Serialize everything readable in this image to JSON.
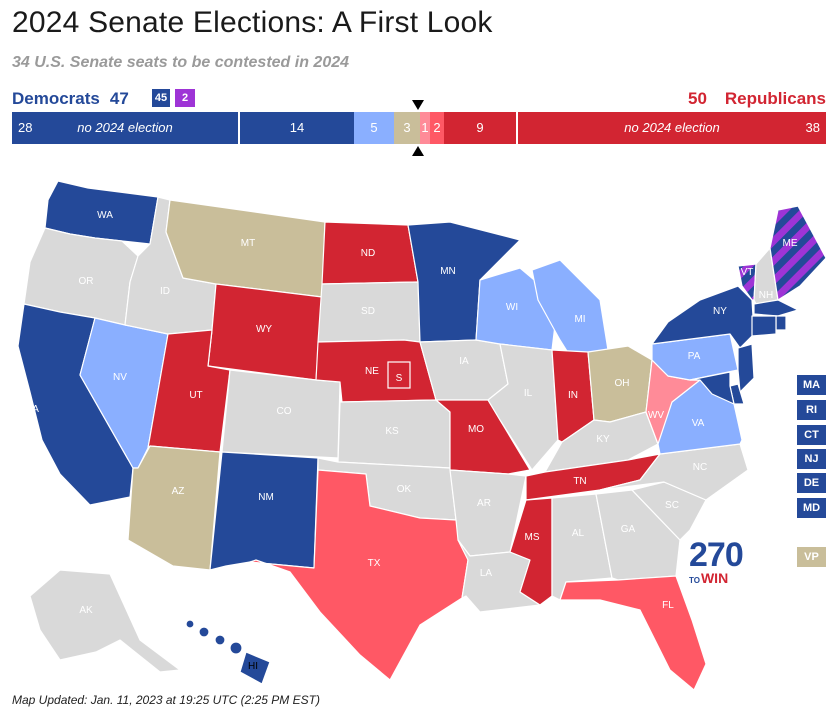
{
  "header": {
    "title": "2024 Senate Elections: A First Look",
    "subtitle": "34 U.S. Senate seats to be contested in 2024"
  },
  "totals": {
    "dem_label": "Democrats",
    "dem_count": "47",
    "dem_badge": "45",
    "ind_badge": "2",
    "rep_count": "50",
    "rep_label": "Republicans"
  },
  "seat_bar": {
    "segments": [
      {
        "label": "28",
        "text": "no 2024 election",
        "color": "#244999"
      },
      {
        "label": "14",
        "color": "#244999"
      },
      {
        "label": "5",
        "color": "#8aafff"
      },
      {
        "label": "3",
        "color": "#c9be9a"
      },
      {
        "label": "1",
        "color": "#ff8b98"
      },
      {
        "label": "2",
        "color": "#ff5865"
      },
      {
        "label": "9",
        "color": "#d22532"
      },
      {
        "label": "38",
        "text": "no 2024 election",
        "color": "#d22532"
      }
    ]
  },
  "colors": {
    "safe_dem": "#244999",
    "lean_dem": "#8aafff",
    "tossup": "#c9be9a",
    "tilt_rep": "#ff8b98",
    "likely_rep": "#ff5865",
    "safe_rep": "#d22532",
    "independent": "#9e34d6",
    "no_election": "#d9d9d9"
  },
  "map": {
    "states": [
      {
        "abbr": "WA",
        "status": "safe_dem"
      },
      {
        "abbr": "OR",
        "status": "no_election"
      },
      {
        "abbr": "CA",
        "status": "safe_dem"
      },
      {
        "abbr": "NV",
        "status": "lean_dem"
      },
      {
        "abbr": "ID",
        "status": "no_election"
      },
      {
        "abbr": "MT",
        "status": "tossup"
      },
      {
        "abbr": "WY",
        "status": "safe_rep"
      },
      {
        "abbr": "UT",
        "status": "safe_rep"
      },
      {
        "abbr": "AZ",
        "status": "tossup"
      },
      {
        "abbr": "CO",
        "status": "no_election"
      },
      {
        "abbr": "NM",
        "status": "safe_dem"
      },
      {
        "abbr": "ND",
        "status": "safe_rep"
      },
      {
        "abbr": "SD",
        "status": "no_election"
      },
      {
        "abbr": "NE",
        "status": "safe_rep"
      },
      {
        "abbr": "S",
        "status": "safe_rep"
      },
      {
        "abbr": "KS",
        "status": "no_election"
      },
      {
        "abbr": "OK",
        "status": "no_election"
      },
      {
        "abbr": "TX",
        "status": "likely_rep"
      },
      {
        "abbr": "MN",
        "status": "safe_dem"
      },
      {
        "abbr": "IA",
        "status": "no_election"
      },
      {
        "abbr": "MO",
        "status": "safe_rep"
      },
      {
        "abbr": "AR",
        "status": "no_election"
      },
      {
        "abbr": "LA",
        "status": "no_election"
      },
      {
        "abbr": "WI",
        "status": "lean_dem"
      },
      {
        "abbr": "IL",
        "status": "no_election"
      },
      {
        "abbr": "MI",
        "status": "lean_dem"
      },
      {
        "abbr": "IN",
        "status": "safe_rep"
      },
      {
        "abbr": "OH",
        "status": "tossup"
      },
      {
        "abbr": "KY",
        "status": "no_election"
      },
      {
        "abbr": "TN",
        "status": "safe_rep"
      },
      {
        "abbr": "MS",
        "status": "safe_rep"
      },
      {
        "abbr": "AL",
        "status": "no_election"
      },
      {
        "abbr": "GA",
        "status": "no_election"
      },
      {
        "abbr": "FL",
        "status": "likely_rep"
      },
      {
        "abbr": "SC",
        "status": "no_election"
      },
      {
        "abbr": "NC",
        "status": "no_election"
      },
      {
        "abbr": "VA",
        "status": "lean_dem"
      },
      {
        "abbr": "WV",
        "status": "tilt_rep"
      },
      {
        "abbr": "PA",
        "status": "lean_dem"
      },
      {
        "abbr": "NY",
        "status": "safe_dem"
      },
      {
        "abbr": "VT",
        "status": "independent"
      },
      {
        "abbr": "NH",
        "status": "no_election"
      },
      {
        "abbr": "ME",
        "status": "independent"
      },
      {
        "abbr": "AK",
        "status": "no_election"
      },
      {
        "abbr": "HI",
        "status": "safe_dem"
      }
    ],
    "side_buttons": [
      {
        "label": "MA",
        "status": "safe_dem"
      },
      {
        "label": "RI",
        "status": "safe_dem"
      },
      {
        "label": "CT",
        "status": "safe_dem"
      },
      {
        "label": "NJ",
        "status": "safe_dem"
      },
      {
        "label": "DE",
        "status": "safe_dem"
      },
      {
        "label": "MD",
        "status": "safe_dem"
      }
    ],
    "vp_label": "VP"
  },
  "logo": {
    "number": "270",
    "to": "TO",
    "win": "WIN"
  },
  "footer": {
    "updated": "Map Updated: Jan. 11, 2023 at 19:25 UTC (2:25 PM EST)"
  }
}
